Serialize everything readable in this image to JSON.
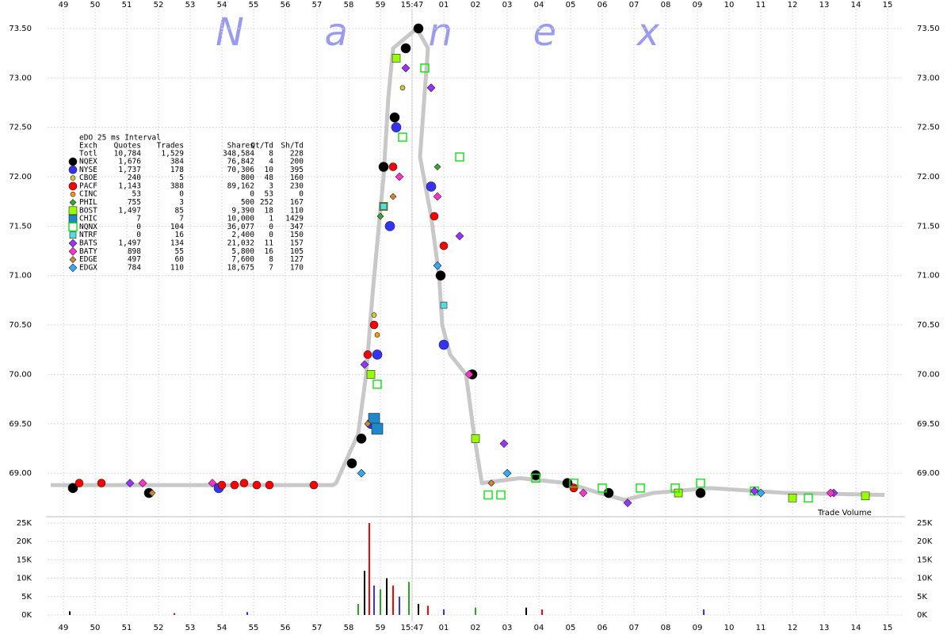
{
  "chart_data": {
    "type": "scatter",
    "title": "N a n e x",
    "xticks": [
      {
        "value": -11,
        "label": "49"
      },
      {
        "value": -10,
        "label": "50"
      },
      {
        "value": -9,
        "label": "51"
      },
      {
        "value": -8,
        "label": "52"
      },
      {
        "value": -7,
        "label": "53"
      },
      {
        "value": -6,
        "label": "54"
      },
      {
        "value": -5,
        "label": "55"
      },
      {
        "value": -4,
        "label": "56"
      },
      {
        "value": -3,
        "label": "57"
      },
      {
        "value": -2,
        "label": "58"
      },
      {
        "value": -1,
        "label": "59"
      },
      {
        "value": 0,
        "label": "15:47"
      },
      {
        "value": 1,
        "label": "01"
      },
      {
        "value": 2,
        "label": "02"
      },
      {
        "value": 3,
        "label": "03"
      },
      {
        "value": 4,
        "label": "04"
      },
      {
        "value": 5,
        "label": "05"
      },
      {
        "value": 6,
        "label": "06"
      },
      {
        "value": 7,
        "label": "07"
      },
      {
        "value": 8,
        "label": "08"
      },
      {
        "value": 9,
        "label": "09"
      },
      10,
      11,
      12,
      13,
      14,
      15
    ],
    "xlim": [
      -11.5,
      15.5
    ],
    "ylim": [
      68.6,
      73.7
    ],
    "yticks": [
      {
        "value": 69,
        "label": "69.00"
      },
      {
        "value": 69.5,
        "label": "69.50"
      },
      {
        "value": 70,
        "label": "70.00"
      },
      {
        "value": 70.5,
        "label": "70.50"
      },
      {
        "value": 71,
        "label": "71.00"
      },
      {
        "value": 71.5,
        "label": "71.50"
      },
      {
        "value": 72,
        "label": "72.00"
      },
      {
        "value": 72.5,
        "label": "72.50"
      },
      {
        "value": 73,
        "label": "73.00"
      },
      {
        "value": 73.5,
        "label": "73.50"
      }
    ],
    "grid": true,
    "quote_line": {
      "color": "#c8c8c8",
      "x": [
        -11.4,
        -5,
        -2.5,
        -2.4,
        -1.7,
        -1.45,
        -1.25,
        -1.05,
        -0.9,
        -0.75,
        -0.6,
        0.15,
        0.5,
        0.25,
        0.6,
        0.85,
        0.95,
        1.2,
        1.7,
        1.95,
        2.2,
        3.4,
        4.9,
        5.9,
        6.7,
        7.6,
        9.4,
        11.8,
        14.9
      ],
      "values": [
        68.88,
        68.88,
        68.88,
        68.9,
        69.4,
        70.0,
        70.8,
        71.5,
        72.0,
        72.8,
        73.3,
        73.5,
        73.3,
        72.2,
        71.6,
        71.0,
        70.5,
        70.2,
        70.0,
        69.4,
        68.9,
        68.95,
        68.9,
        68.8,
        68.73,
        68.8,
        68.85,
        68.8,
        68.78
      ]
    },
    "stats": {
      "title": "eDO 25 ms Interval",
      "columns": [
        "Exch",
        "Quotes",
        "Trades",
        "Shares",
        "Qt/Td",
        "Sh/Td"
      ],
      "total": {
        "name": "Totl",
        "cells": [
          "10,784",
          "1,529",
          "348,584",
          "8",
          "228"
        ]
      }
    },
    "series": [
      {
        "name": "NQEX",
        "color": "#000000",
        "marker": "circle",
        "size": 6,
        "stats": [
          "1,676",
          "384",
          "76,842",
          "4",
          "200"
        ],
        "x": [
          -10.7,
          -8.3,
          -1.9,
          -1.6,
          -0.9,
          -0.55,
          -0.2,
          0.2,
          0.9,
          1.9,
          3.9,
          4.9,
          6.2,
          9.1
        ],
        "values": [
          68.85,
          68.8,
          69.1,
          69.35,
          72.1,
          72.6,
          73.3,
          73.5,
          71.0,
          70.0,
          68.98,
          68.9,
          68.8,
          68.8
        ]
      },
      {
        "name": "NYSE",
        "color": "#3333ff",
        "marker": "circle",
        "size": 6,
        "stats": [
          "1,737",
          "178",
          "70,306",
          "10",
          "395"
        ],
        "x": [
          -6.1,
          -1.3,
          -1.1,
          -0.7,
          -0.5,
          0.6,
          1.0
        ],
        "values": [
          68.85,
          69.5,
          70.2,
          71.5,
          72.5,
          71.9,
          70.3
        ]
      },
      {
        "name": "CBOE",
        "color": "#cccc33",
        "marker": "circle",
        "size": 3,
        "stats": [
          "240",
          "5",
          "800",
          "48",
          "160"
        ],
        "x": [
          -1.2,
          -0.3
        ],
        "values": [
          70.6,
          72.9
        ]
      },
      {
        "name": "PACF",
        "color": "#ff0000",
        "marker": "circle",
        "size": 5,
        "stats": [
          "1,143",
          "388",
          "89,162",
          "3",
          "230"
        ],
        "x": [
          -10.5,
          -9.8,
          -6.0,
          -5.6,
          -5.3,
          -4.9,
          -4.5,
          -3.1,
          -1.4,
          -1.2,
          -0.6,
          0.7,
          1.0,
          5.1
        ],
        "values": [
          68.9,
          68.9,
          68.88,
          68.88,
          68.9,
          68.88,
          68.88,
          68.88,
          70.2,
          70.5,
          72.1,
          71.6,
          71.3,
          68.85
        ]
      },
      {
        "name": "CINC",
        "color": "#ff9900",
        "marker": "circle",
        "size": 3,
        "stats": [
          "53",
          "0",
          "0",
          "53",
          "0"
        ],
        "x": [
          -1.1,
          2.5
        ],
        "values": [
          70.4,
          68.9
        ]
      },
      {
        "name": "PHIL",
        "color": "#33aa33",
        "marker": "diamond",
        "size": 4,
        "stats": [
          "755",
          "3",
          "500",
          "252",
          "167"
        ],
        "x": [
          -1.0,
          0.8
        ],
        "values": [
          71.6,
          72.1
        ]
      },
      {
        "name": "BOST",
        "color": "#99ff00",
        "marker": "square",
        "size": 5,
        "stats": [
          "1,497",
          "85",
          "9,390",
          "18",
          "110"
        ],
        "x": [
          -1.3,
          -0.9,
          -0.5,
          2.0,
          8.4,
          12.0,
          14.3
        ],
        "values": [
          70.0,
          71.7,
          73.2,
          69.35,
          68.8,
          68.75,
          68.77
        ]
      },
      {
        "name": "CHIC",
        "color": "#1f88c8",
        "marker": "square",
        "size": 7,
        "stats": [
          "7",
          "7",
          "10,000",
          "1",
          "1429"
        ],
        "x": [
          -1.2,
          -1.1
        ],
        "values": [
          69.55,
          69.45
        ]
      },
      {
        "name": "NQNX",
        "color": "#22dd22",
        "marker": "square-open",
        "size": 5,
        "stats": [
          "0",
          "104",
          "36,077",
          "0",
          "347"
        ],
        "x": [
          -1.1,
          -0.3,
          0.4,
          1.5,
          2.4,
          2.8,
          3.9,
          5.1,
          6.0,
          7.2,
          8.3,
          9.1,
          10.8,
          12.5
        ],
        "values": [
          69.9,
          72.4,
          73.1,
          72.2,
          68.78,
          68.78,
          68.95,
          68.9,
          68.85,
          68.85,
          68.85,
          68.9,
          68.82,
          68.75
        ]
      },
      {
        "name": "NTRF",
        "color": "#55dddd",
        "marker": "square",
        "size": 4,
        "stats": [
          "0",
          "16",
          "2,400",
          "0",
          "150"
        ],
        "x": [
          -0.9,
          1.0
        ],
        "values": [
          71.7,
          70.7
        ]
      },
      {
        "name": "BATS",
        "color": "#9933ff",
        "marker": "diamond",
        "size": 5,
        "stats": [
          "1,497",
          "134",
          "21,032",
          "11",
          "157"
        ],
        "x": [
          -8.9,
          -1.5,
          -0.2,
          0.6,
          1.5,
          2.9,
          6.8,
          10.8,
          13.3
        ],
        "values": [
          68.9,
          70.1,
          73.1,
          72.9,
          71.4,
          69.3,
          68.7,
          68.82,
          68.8
        ]
      },
      {
        "name": "BATY",
        "color": "#ff33cc",
        "marker": "diamond",
        "size": 5,
        "stats": [
          "898",
          "55",
          "5,800",
          "16",
          "105"
        ],
        "x": [
          -8.5,
          -6.3,
          -0.4,
          0.8,
          1.8,
          5.4,
          13.2
        ],
        "values": [
          68.9,
          68.9,
          72.0,
          71.8,
          70.0,
          68.8,
          68.8
        ]
      },
      {
        "name": "EDGE",
        "color": "#cc8833",
        "marker": "diamond",
        "size": 4,
        "stats": [
          "497",
          "60",
          "7,600",
          "8",
          "127"
        ],
        "x": [
          -8.2,
          -1.4,
          2.5,
          -0.6
        ],
        "values": [
          68.8,
          69.5,
          68.9,
          71.8
        ]
      },
      {
        "name": "EDGX",
        "color": "#33aaff",
        "marker": "diamond",
        "size": 5,
        "stats": [
          "784",
          "110",
          "18,675",
          "7",
          "170"
        ],
        "x": [
          -1.6,
          0.8,
          3.0,
          11.0
        ],
        "values": [
          69.0,
          71.1,
          69.0,
          68.8
        ]
      }
    ],
    "volume": {
      "label": "Trade Volume",
      "ylim": [
        0,
        25000
      ],
      "yticks": [
        {
          "value": 0,
          "label": "0K"
        },
        {
          "value": 5000,
          "label": "5K"
        },
        {
          "value": 10000,
          "label": "10K"
        },
        {
          "value": 15000,
          "label": "15K"
        },
        {
          "value": 20000,
          "label": "20K"
        },
        {
          "value": 25000,
          "label": "25K"
        }
      ],
      "colors": [
        "#000000",
        "#ff0000",
        "#3333ff",
        "#22aa22"
      ],
      "x": [
        -10.8,
        -7.5,
        -5.2,
        -1.7,
        -1.5,
        -1.35,
        -1.2,
        -1.0,
        -0.8,
        -0.6,
        -0.4,
        -0.1,
        0.2,
        0.5,
        1.0,
        2.0,
        3.6,
        4.1,
        9.2
      ],
      "values": [
        1000,
        500,
        800,
        3000,
        12000,
        25000,
        8000,
        7000,
        10000,
        8000,
        5000,
        9000,
        3000,
        2500,
        1500,
        2000,
        2000,
        1500,
        1500
      ]
    }
  }
}
